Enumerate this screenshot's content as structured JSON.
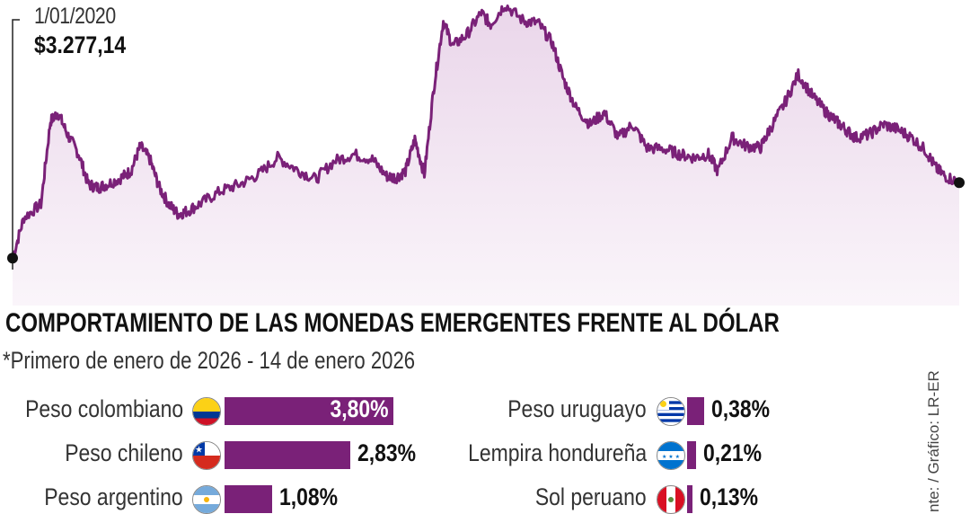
{
  "start_label": {
    "date": "1/01/2020",
    "value": "$3.277,14"
  },
  "title": "COMPORTAMIENTO DE LAS MONEDAS EMERGENTES FRENTE AL DÓLAR",
  "subtitle": "*Primero de enero de 2026 - 14 de enero 2026",
  "source": "nte: / Gráfico: LR-ER",
  "colors": {
    "line": "#7a2178",
    "area": "#f3e6f3",
    "bar": "#7a2178"
  },
  "chart_data": [
    {
      "type": "area",
      "title": "",
      "x_range": [
        "2020-01-01",
        "2026-01-14"
      ],
      "grid": false,
      "annotations": [
        {
          "x": "2020-01-01",
          "label": "1/01/2020",
          "value": "$3.277,14"
        }
      ],
      "points": [
        [
          0.0,
          3277
        ],
        [
          0.012,
          3520
        ],
        [
          0.03,
          3600
        ],
        [
          0.04,
          4100
        ],
        [
          0.048,
          4150
        ],
        [
          0.058,
          4020
        ],
        [
          0.07,
          3900
        ],
        [
          0.08,
          3720
        ],
        [
          0.09,
          3700
        ],
        [
          0.1,
          3720
        ],
        [
          0.115,
          3760
        ],
        [
          0.125,
          3800
        ],
        [
          0.135,
          3950
        ],
        [
          0.145,
          3870
        ],
        [
          0.155,
          3700
        ],
        [
          0.165,
          3600
        ],
        [
          0.175,
          3540
        ],
        [
          0.185,
          3560
        ],
        [
          0.2,
          3610
        ],
        [
          0.22,
          3680
        ],
        [
          0.24,
          3720
        ],
        [
          0.26,
          3780
        ],
        [
          0.28,
          3880
        ],
        [
          0.3,
          3810
        ],
        [
          0.32,
          3750
        ],
        [
          0.34,
          3860
        ],
        [
          0.36,
          3900
        ],
        [
          0.38,
          3870
        ],
        [
          0.395,
          3770
        ],
        [
          0.405,
          3760
        ],
        [
          0.415,
          3800
        ],
        [
          0.425,
          3990
        ],
        [
          0.435,
          3780
        ],
        [
          0.445,
          4300
        ],
        [
          0.455,
          4700
        ],
        [
          0.465,
          4550
        ],
        [
          0.48,
          4620
        ],
        [
          0.495,
          4750
        ],
        [
          0.505,
          4680
        ],
        [
          0.52,
          4800
        ],
        [
          0.54,
          4700
        ],
        [
          0.555,
          4690
        ],
        [
          0.57,
          4570
        ],
        [
          0.582,
          4350
        ],
        [
          0.595,
          4180
        ],
        [
          0.61,
          4080
        ],
        [
          0.625,
          4150
        ],
        [
          0.64,
          4000
        ],
        [
          0.655,
          4080
        ],
        [
          0.67,
          3940
        ],
        [
          0.69,
          3930
        ],
        [
          0.705,
          3900
        ],
        [
          0.72,
          3880
        ],
        [
          0.735,
          3900
        ],
        [
          0.745,
          3800
        ],
        [
          0.76,
          4000
        ],
        [
          0.775,
          3950
        ],
        [
          0.79,
          3940
        ],
        [
          0.8,
          4050
        ],
        [
          0.815,
          4200
        ],
        [
          0.83,
          4380
        ],
        [
          0.845,
          4250
        ],
        [
          0.86,
          4150
        ],
        [
          0.87,
          4100
        ],
        [
          0.88,
          4050
        ],
        [
          0.89,
          4000
        ],
        [
          0.905,
          4020
        ],
        [
          0.92,
          4080
        ],
        [
          0.935,
          4050
        ],
        [
          0.95,
          4000
        ],
        [
          0.965,
          3920
        ],
        [
          0.975,
          3820
        ],
        [
          0.985,
          3770
        ],
        [
          1.0,
          3730
        ]
      ]
    },
    {
      "type": "bar",
      "orientation": "horizontal",
      "series": [
        {
          "column": "left",
          "items": [
            {
              "label": "Peso colombiano",
              "value": 3.8,
              "display": "3,80%",
              "flag": "colombia-flag-icon"
            },
            {
              "label": "Peso chileno",
              "value": 2.83,
              "display": "2,83%",
              "flag": "chile-flag-icon"
            },
            {
              "label": "Peso argentino",
              "value": 1.08,
              "display": "1,08%",
              "flag": "argentina-flag-icon"
            }
          ]
        },
        {
          "column": "right",
          "items": [
            {
              "label": "Peso uruguayo",
              "value": 0.38,
              "display": "0,38%",
              "flag": "uruguay-flag-icon"
            },
            {
              "label": "Lempira hondureña",
              "value": 0.21,
              "display": "0,21%",
              "flag": "honduras-flag-icon"
            },
            {
              "label": "Sol peruano",
              "value": 0.13,
              "display": "0,13%",
              "flag": "peru-flag-icon"
            }
          ]
        }
      ]
    }
  ]
}
